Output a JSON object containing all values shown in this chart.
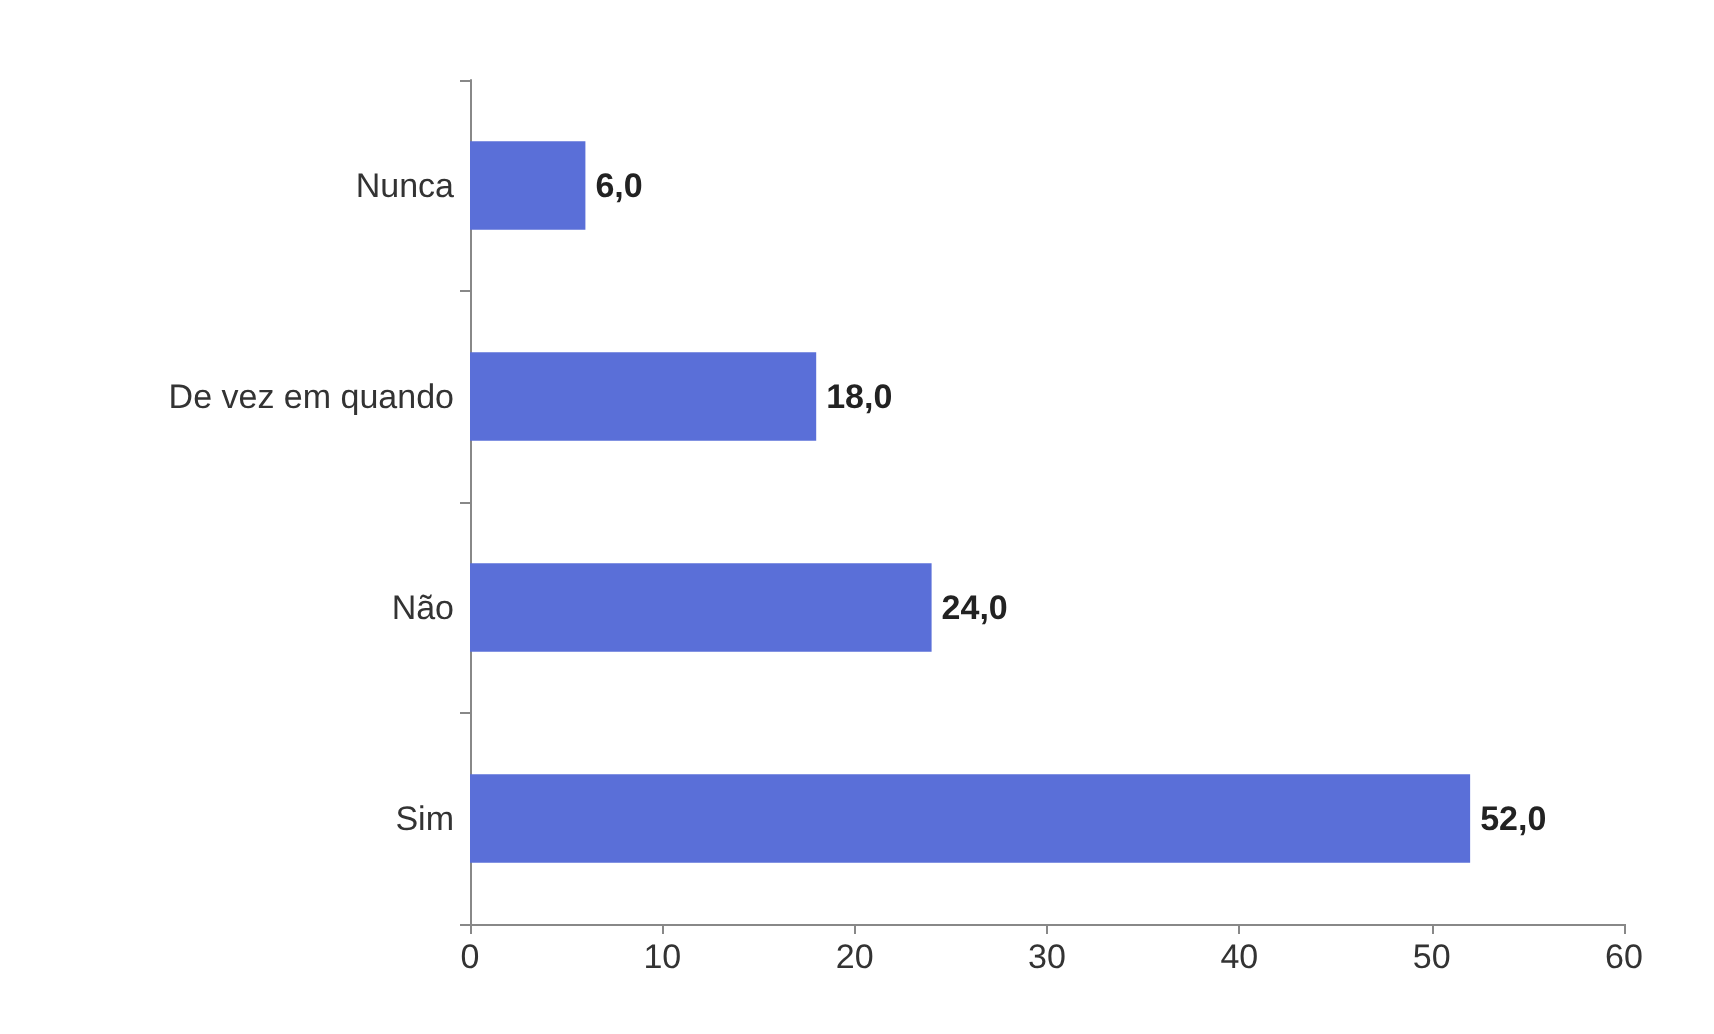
{
  "chart_data": {
    "type": "bar",
    "orientation": "horizontal",
    "categories": [
      "Nunca",
      "De vez em quando",
      "Não",
      "Sim"
    ],
    "values": [
      6,
      18,
      24,
      52
    ],
    "value_labels": [
      "6,0",
      "18,0",
      "24,0",
      "52,0"
    ],
    "color": "#5a6fd8",
    "xlim": [
      0,
      60
    ],
    "xticks": [
      0,
      10,
      20,
      30,
      40,
      50,
      60
    ],
    "grid": false
  }
}
